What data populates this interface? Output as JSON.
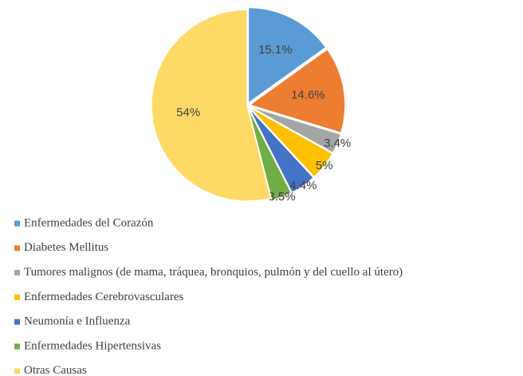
{
  "chart_data": {
    "type": "pie",
    "categories": [
      "Enfermedades del Corazón",
      "Diabetes Mellitus",
      "Tumores malignos (de mama, tráquea, bronquios, pulmón y del cuello al útero)",
      "Enfermedades Cerebrovasculares",
      "Neumonía e Influenza",
      "Enfermedades Hipertensivas",
      "Otras Causas"
    ],
    "values": [
      15.1,
      14.6,
      3.4,
      5,
      4.4,
      3.5,
      54
    ],
    "value_labels": [
      "15.1%",
      "14.6%",
      "3.4%",
      "5%",
      "4.4%",
      "3.5%",
      "54%"
    ],
    "colors": [
      "#5b9bd5",
      "#ed7d31",
      "#a5a5a5",
      "#ffc000",
      "#4472c4",
      "#70ad47",
      "#ffd966"
    ],
    "legend": "bottom"
  }
}
